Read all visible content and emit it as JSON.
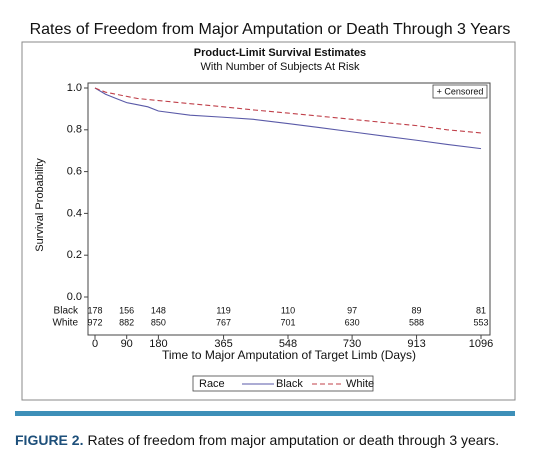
{
  "chart_data": {
    "type": "line",
    "title": "Rates of Freedom from Major Amputation or Death Through 3 Years",
    "subtitle": "Product-Limit Survival Estimates",
    "subtitle2": "With Number of Subjects At Risk",
    "censored_label": "+ Censored",
    "x_label": "Time to Major Amputation of Target Limb (Days)",
    "y_label": "Survival Probability",
    "x": [
      0,
      30,
      60,
      90,
      120,
      150,
      180,
      270,
      365,
      450,
      548,
      640,
      730,
      820,
      913,
      1000,
      1096
    ],
    "series": [
      {
        "name": "Black",
        "color": "#5a5aa8",
        "dash": false,
        "values": [
          1,
          0.97,
          0.95,
          0.93,
          0.92,
          0.91,
          0.89,
          0.87,
          0.86,
          0.85,
          0.83,
          0.81,
          0.79,
          0.77,
          0.75,
          0.73,
          0.71
        ]
      },
      {
        "name": "White",
        "color": "#c0404a",
        "dash": true,
        "values": [
          1,
          0.98,
          0.97,
          0.96,
          0.95,
          0.945,
          0.94,
          0.925,
          0.91,
          0.895,
          0.88,
          0.865,
          0.85,
          0.835,
          0.82,
          0.8,
          0.785
        ]
      }
    ],
    "legend_title": "Race",
    "xlim": [
      0,
      1096
    ],
    "ylim": [
      0,
      1
    ],
    "xticks": [
      0,
      90,
      180,
      365,
      548,
      730,
      913,
      1096
    ],
    "yticks": [
      {
        "value": 0,
        "label": "0.0"
      },
      {
        "value": 0.2,
        "label": "0.2"
      },
      {
        "value": 0.4,
        "label": "0.4"
      },
      {
        "value": 0.6,
        "label": "0.6"
      },
      {
        "value": 0.8,
        "label": "0.8"
      },
      {
        "value": 1,
        "label": "1.0"
      }
    ],
    "at_risk": {
      "times": [
        0,
        90,
        180,
        365,
        548,
        730,
        913,
        1096
      ],
      "rows": [
        {
          "label": "Black",
          "values": [
            178,
            156,
            148,
            119,
            110,
            97,
            89,
            81
          ]
        },
        {
          "label": "White",
          "values": [
            972,
            882,
            850,
            767,
            701,
            630,
            588,
            553
          ]
        }
      ]
    }
  },
  "caption": {
    "label": "FIGURE 2.",
    "text": "Rates of freedom from major amputation or death through 3 years."
  }
}
